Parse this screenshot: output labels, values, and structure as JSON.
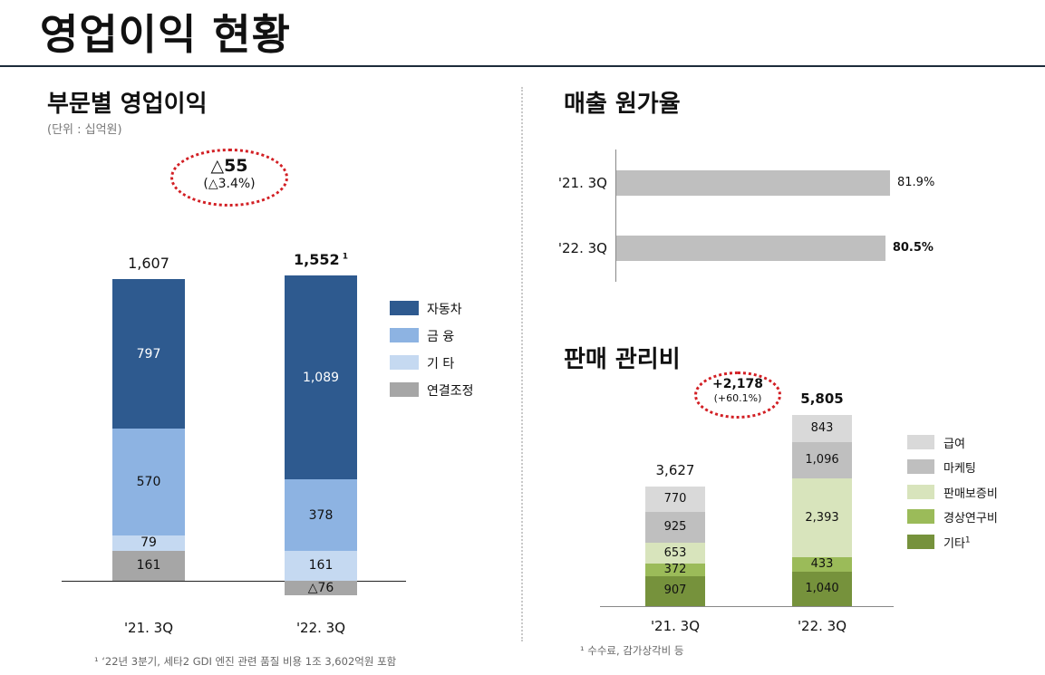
{
  "page": {
    "title": "영업이익 현황"
  },
  "left": {
    "heading": "부문별 영업이익",
    "unit": "(단위 : 십억원)",
    "change": {
      "main": "△55",
      "pct": "(△3.4%)"
    },
    "footnote": "¹ ‘22년 3분기, 세타2 GDI 엔진 관련 품질 비용 1조 3,602억원 포함"
  },
  "right_top": {
    "heading": "매출 원가율"
  },
  "right_bottom": {
    "heading": "판매 관리비",
    "change": {
      "main": "+2,178",
      "pct": "(+60.1%)"
    },
    "footnote": "¹ 수수료, 감가상각비 등"
  },
  "colors": {
    "auto": "#2e5a8f",
    "finance": "#8db3e2",
    "other": "#c5d9f1",
    "adjust": "#a6a6a6",
    "salary": "#d9d9d9",
    "marketing": "#bfbfbf",
    "warranty": "#d8e4bc",
    "rnd": "#9bbb59",
    "sga_other": "#76923c",
    "cost_bar": "#bfbfbf"
  },
  "chart_data": [
    {
      "type": "bar",
      "stacked": true,
      "categories": [
        "'21. 3Q",
        "'22. 3Q"
      ],
      "series": [
        {
          "name": "연결조정",
          "values": [
            161,
            -76
          ],
          "labels": [
            "161",
            "△76"
          ],
          "color_key": "adjust"
        },
        {
          "name": "기 타",
          "values": [
            79,
            161
          ],
          "labels": [
            "79",
            "161"
          ],
          "color_key": "other"
        },
        {
          "name": "금 융",
          "values": [
            570,
            378
          ],
          "labels": [
            "570",
            "378"
          ],
          "color_key": "finance"
        },
        {
          "name": "자동차",
          "values": [
            797,
            1089
          ],
          "labels": [
            "797",
            "1,089"
          ],
          "color_key": "auto"
        }
      ],
      "totals": [
        "1,607",
        "1,552"
      ],
      "total_note": [
        "",
        "1"
      ],
      "legend_order": [
        "자동차",
        "금 융",
        "기 타",
        "연결조정"
      ],
      "legend_position": "right"
    },
    {
      "type": "bar",
      "orientation": "horizontal",
      "categories": [
        "'21. 3Q",
        "'22. 3Q"
      ],
      "values": [
        81.9,
        80.5
      ],
      "labels": [
        "81.9%",
        "80.5%"
      ]
    },
    {
      "type": "bar",
      "stacked": true,
      "categories": [
        "'21. 3Q",
        "'22. 3Q"
      ],
      "series": [
        {
          "name": "기타",
          "values": [
            907,
            1040
          ],
          "labels": [
            "907",
            "1,040"
          ],
          "color_key": "sga_other",
          "note": "1"
        },
        {
          "name": "경상연구비",
          "values": [
            372,
            433
          ],
          "labels": [
            "372",
            "433"
          ],
          "color_key": "rnd"
        },
        {
          "name": "판매보증비",
          "values": [
            653,
            2393
          ],
          "labels": [
            "653",
            "2,393"
          ],
          "color_key": "warranty"
        },
        {
          "name": "마케팅",
          "values": [
            925,
            1096
          ],
          "labels": [
            "925",
            "1,096"
          ],
          "color_key": "marketing"
        },
        {
          "name": "급여",
          "values": [
            770,
            843
          ],
          "labels": [
            "770",
            "843"
          ],
          "color_key": "salary"
        }
      ],
      "totals": [
        "3,627",
        "5,805"
      ],
      "legend_order": [
        "급여",
        "마케팅",
        "판매보증비",
        "경상연구비",
        "기타"
      ],
      "legend_position": "right"
    }
  ]
}
